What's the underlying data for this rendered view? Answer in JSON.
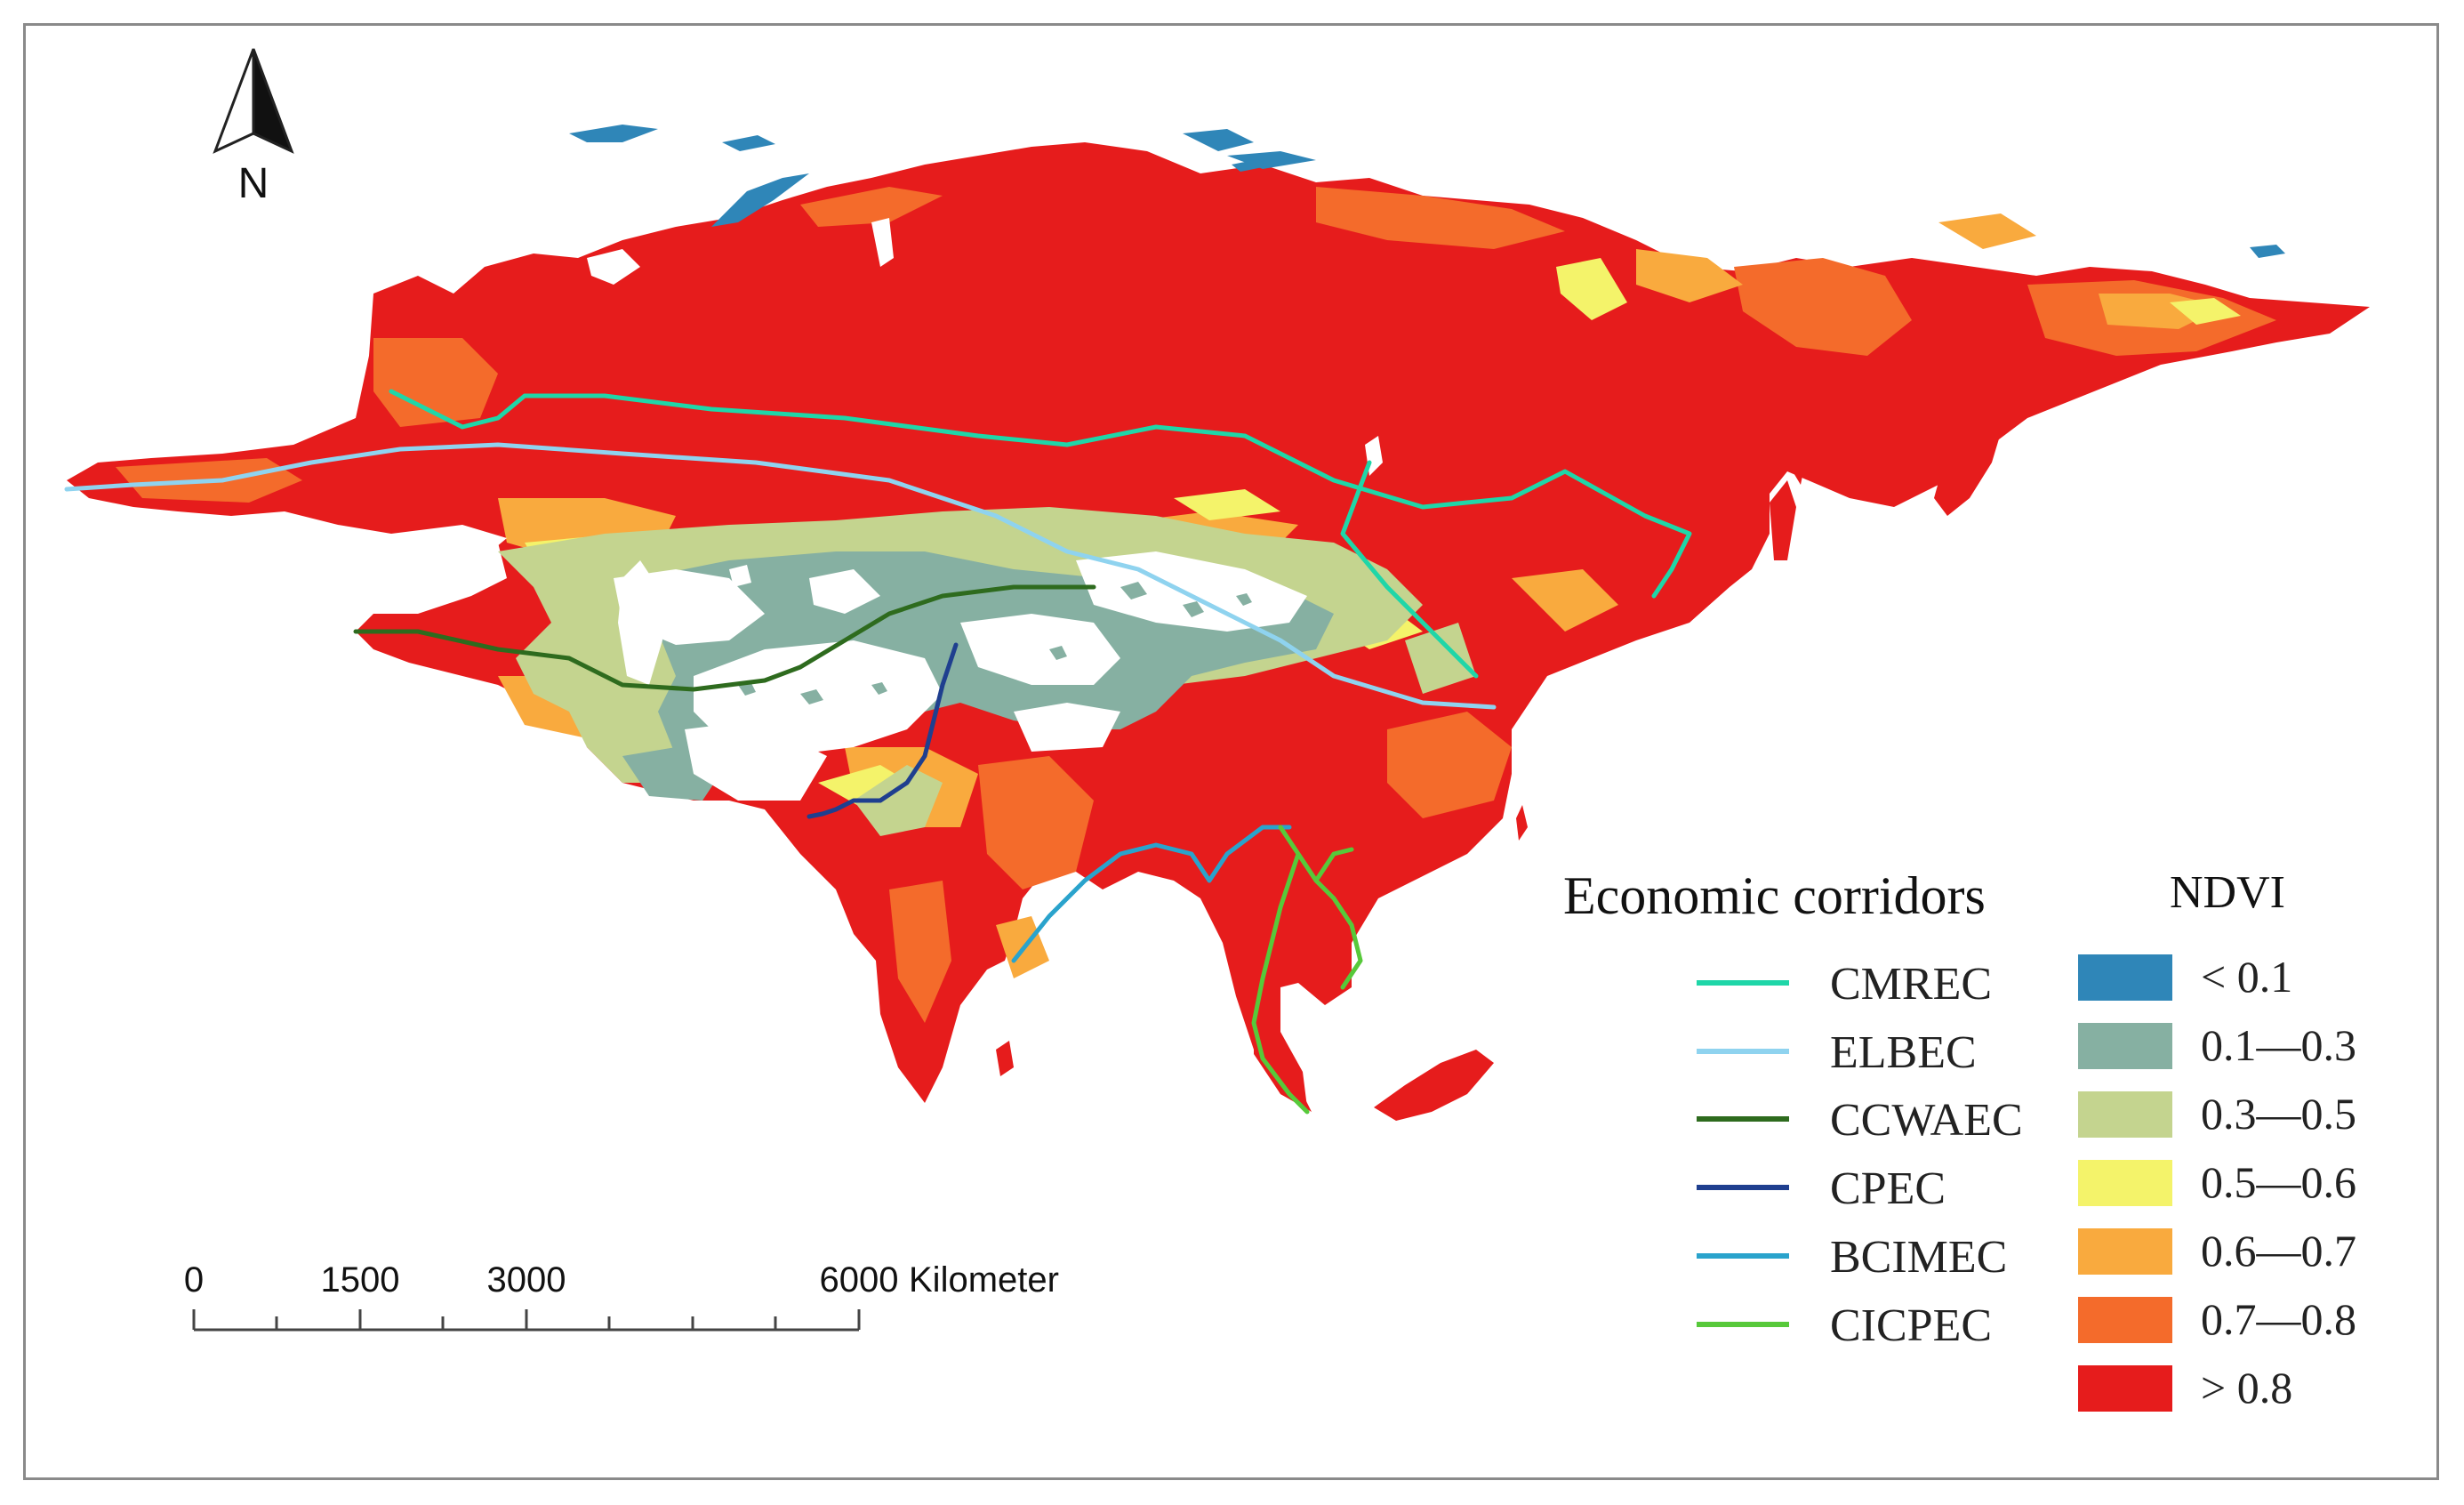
{
  "north_arrow": {
    "label": "N"
  },
  "scale_bar": {
    "ticks": [
      "0",
      "1500",
      "3000",
      "6000"
    ],
    "unit": "Kilometer"
  },
  "legend_corridors": {
    "title": "Economic corridors",
    "items": [
      {
        "label": "CMREC",
        "color": "#1fd6a8"
      },
      {
        "label": "ELBEC",
        "color": "#8fd3ef"
      },
      {
        "label": "CCWAEC",
        "color": "#2e6b1e"
      },
      {
        "label": "CPEC",
        "color": "#1f3f8f"
      },
      {
        "label": "BCIMEC",
        "color": "#2aa3cc"
      },
      {
        "label": "CICPEC",
        "color": "#57c93a"
      }
    ]
  },
  "legend_ndvi": {
    "title": "NDVI",
    "items": [
      {
        "label": "< 0.1",
        "color": "#2f86b8"
      },
      {
        "label": "0.1—0.3",
        "color": "#86b0a2"
      },
      {
        "label": "0.3—0.5",
        "color": "#c4d48f"
      },
      {
        "label": "0.5—0.6",
        "color": "#f4f36a"
      },
      {
        "label": "0.6—0.7",
        "color": "#f9aa3e"
      },
      {
        "label": "0.7—0.8",
        "color": "#f46b2b"
      },
      {
        "label": "> 0.8",
        "color": "#e61c1c"
      }
    ]
  }
}
